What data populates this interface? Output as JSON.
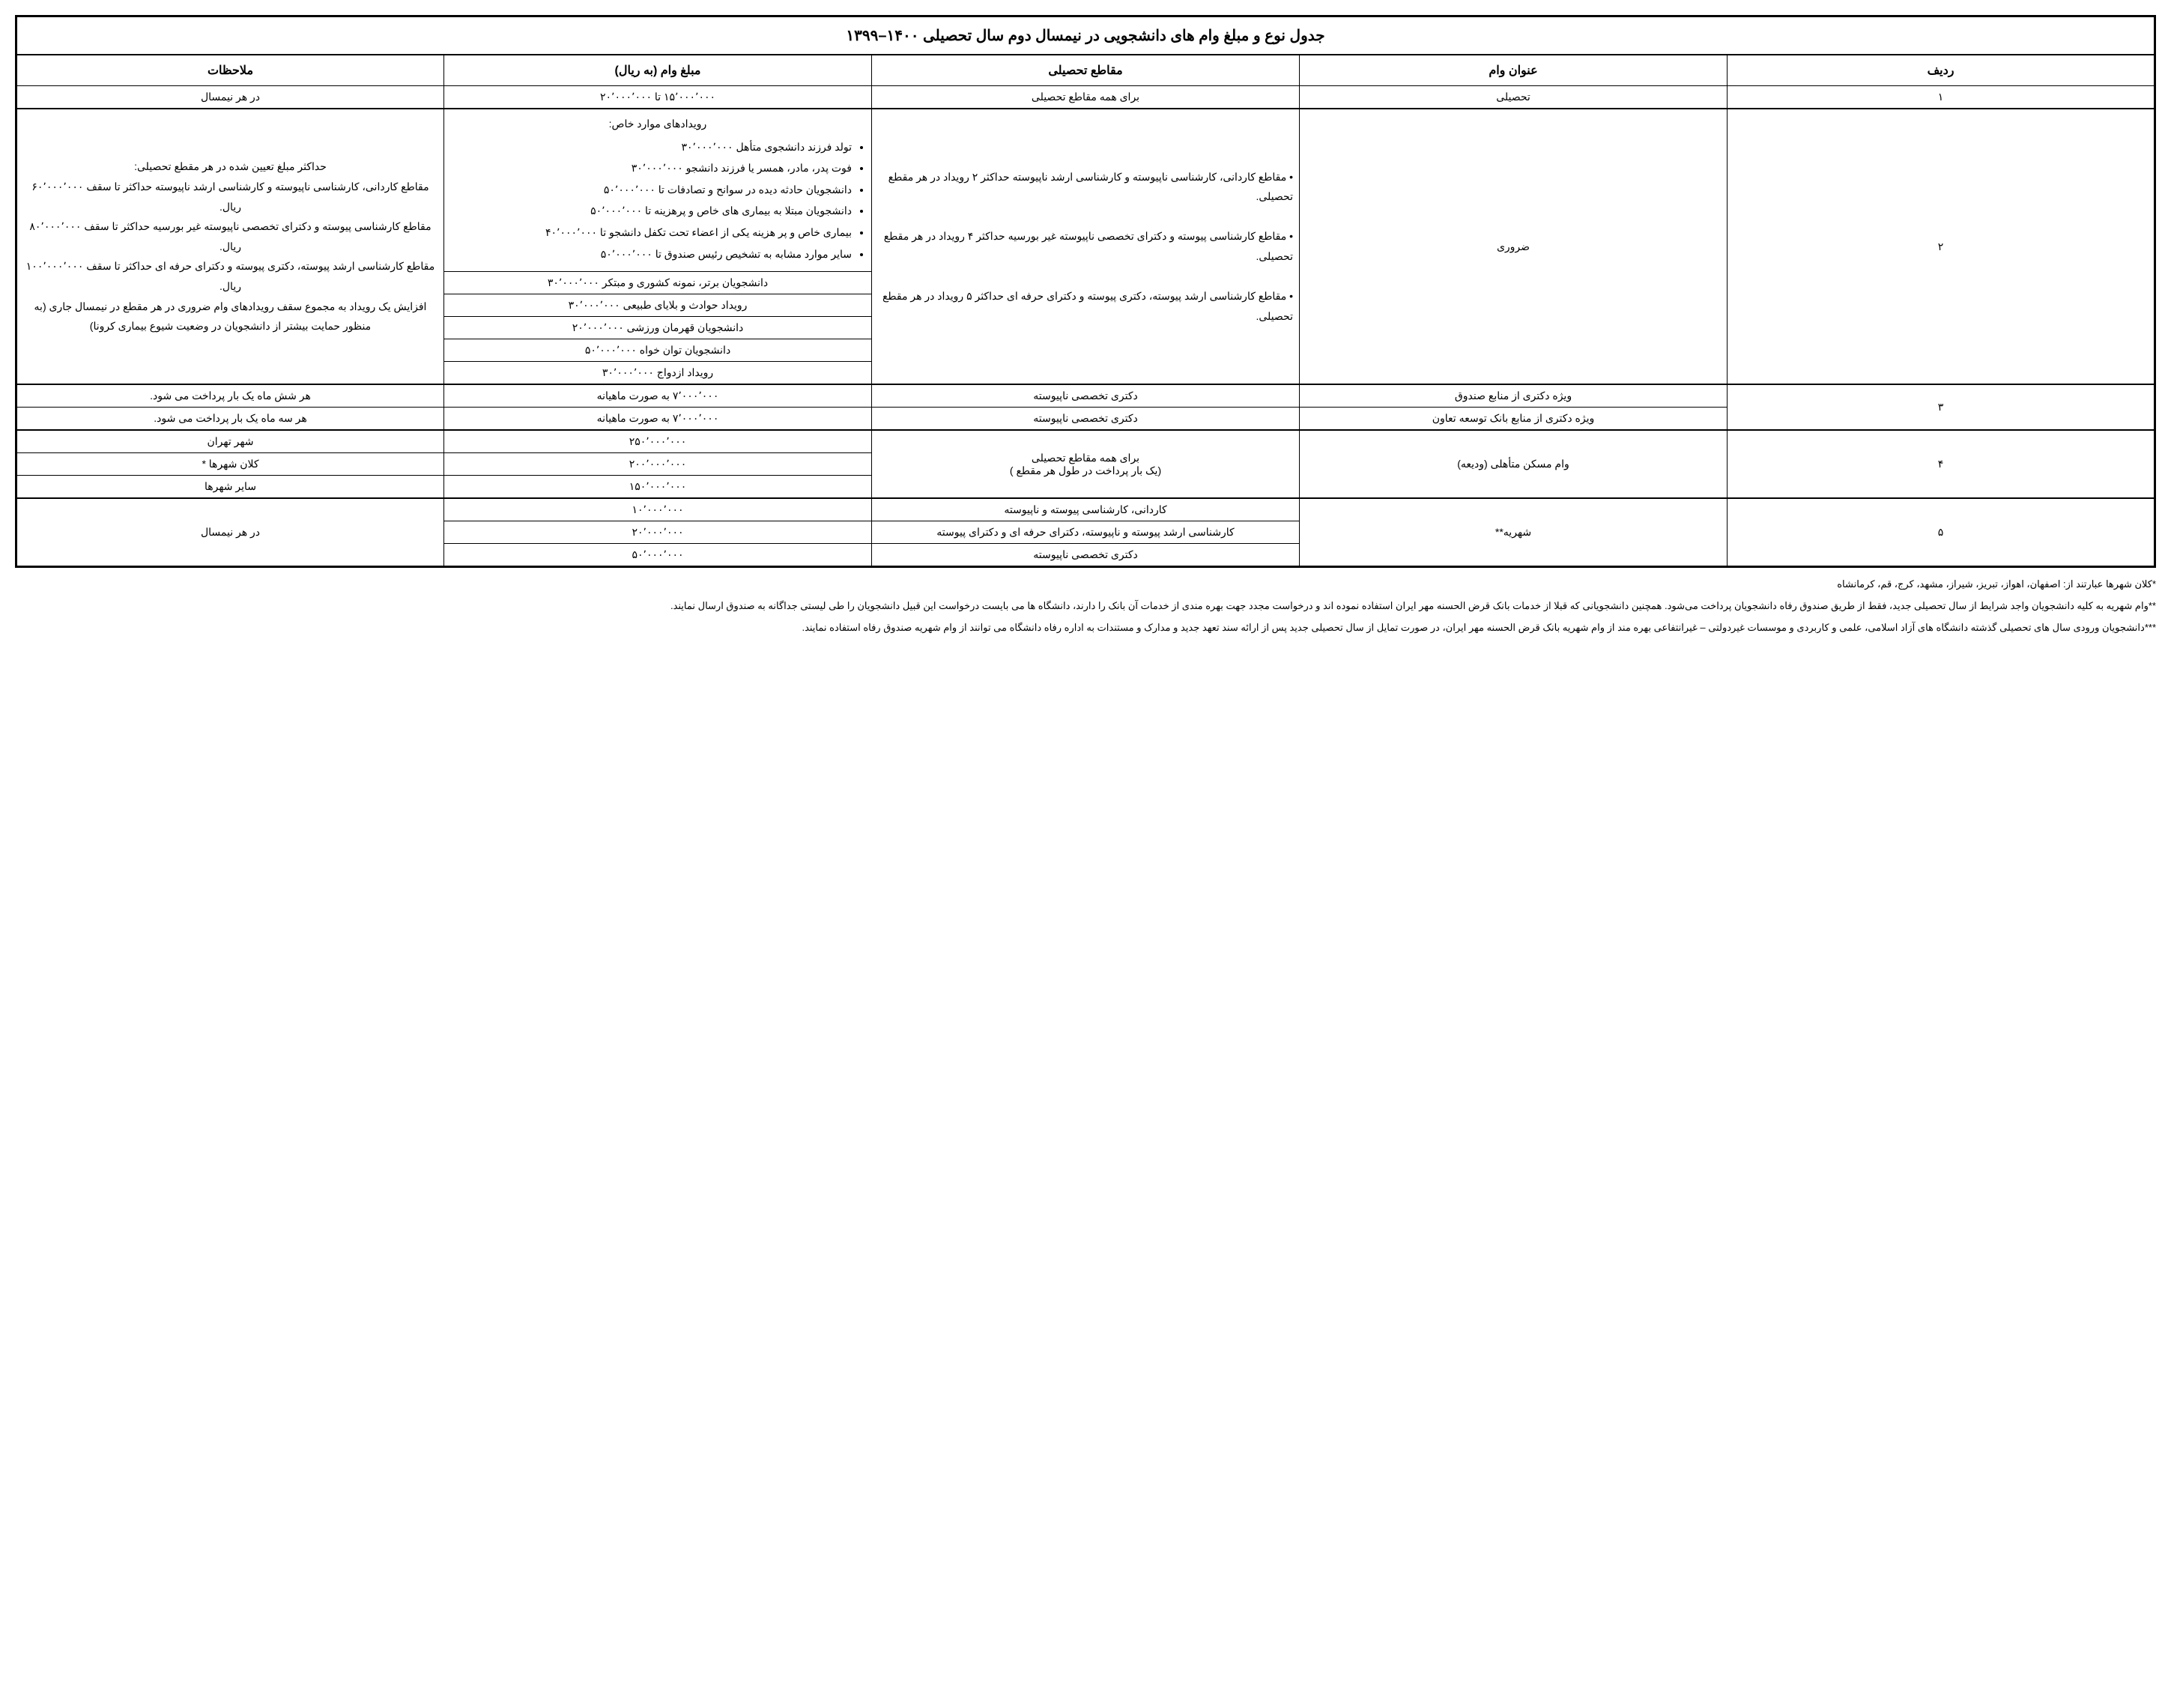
{
  "title": "جدول نوع و مبلغ وام های دانشجویی در نیمسال دوم سال تحصیلی ۱۴۰۰–۱۳۹۹",
  "headers": {
    "radif": "ردیف",
    "onvan": "عنوان وام",
    "maghta": "مقاطع تحصیلی",
    "mablagh": "مبلغ وام (به ریال)",
    "molahezat": "ملاحظات"
  },
  "row1": {
    "num": "۱",
    "onvan": "تحصیلی",
    "maghta": "برای همه مقاطع تحصیلی",
    "mablagh": "۱۵٬۰۰۰٬۰۰۰ تا ۲۰٬۰۰۰٬۰۰۰",
    "mol": "در هر نیمسال"
  },
  "row2": {
    "num": "۲",
    "onvan": "ضروری",
    "maghta1": "• مقاطع کاردانی، کارشناسی ناپیوسته و کارشناسی ارشد ناپیوسته حداکثر ۲ رویداد در هر مقطع تحصیلی.",
    "maghta2": "• مقاطع کارشناسی پیوسته و دکترای تخصصی ناپیوسته غیر بورسیه حداکثر ۴ رویداد در هر مقطع تحصیلی.",
    "maghta3": "• مقاطع کارشناسی ارشد پیوسته،  دکتری پیوسته و دکترای حرفه ای حداکثر ۵ رویداد در هر مقطع تحصیلی.",
    "mablagh_special_title": "رویدادهای موارد خاص:",
    "sp1": "تولد فرزند دانشجوی متأهل ۳۰٬۰۰۰٬۰۰۰",
    "sp2": "فوت پدر، مادر، همسر یا فرزند دانشجو ۳۰٬۰۰۰٬۰۰۰",
    "sp3": "دانشجویان حادثه دیده در سوانح و تصادفات تا ۵۰٬۰۰۰٬۰۰۰",
    "sp4": "دانشجویان مبتلا به بیماری های خاص و پرهزینه تا ۵۰٬۰۰۰٬۰۰۰",
    "sp5": "بیماری خاص و پر هزینه یکی از اعضاء تحت تکفل دانشجو تا ۴۰٬۰۰۰٬۰۰۰",
    "sp6": "سایر موارد مشابه به تشخیص رئیس صندوق تا ۵۰٬۰۰۰٬۰۰۰",
    "m2": "دانشجویان برتر، نمونه کشوری و مبتکر ۳۰٬۰۰۰٬۰۰۰",
    "m3": "رویداد حوادث و بلایای طبیعی ۳۰٬۰۰۰٬۰۰۰",
    "m4": "دانشجویان قهرمان ورزشی ۲۰٬۰۰۰٬۰۰۰",
    "m5": "دانشجویان توان خواه ۵۰٬۰۰۰٬۰۰۰",
    "m6": "رویداد ازدواج ۳۰٬۰۰۰٬۰۰۰",
    "mol1": "حداکثر مبلغ تعیین شده در هر مقطع تحصیلی:",
    "mol2": "مقاطع کاردانی، کارشناسی ناپیوسته و کارشناسی ارشد ناپیوسته حداکثر تا سقف ۶۰٬۰۰۰٬۰۰۰ ریال.",
    "mol3": "مقاطع کارشناسی پیوسته و دکترای تخصصی ناپیوسته غیر بورسیه حداکثر تا سقف ۸۰٬۰۰۰٬۰۰۰ ریال.",
    "mol4": "مقاطع کارشناسی ارشد پیوسته، دکتری پیوسته و دکترای حرفه ای حداکثر تا سقف ۱۰۰٬۰۰۰٬۰۰۰ ریال.",
    "mol5": "افزایش یک رویداد به مجموع سقف رویدادهای وام ضروری در هر مقطع در نیمسال جاری (به منظور حمایت بیشتر از دانشجویان در وضعیت شیوع بیماری کرونا)"
  },
  "row3": {
    "num": "۳",
    "onvan_a": "ویژه دکتری از منابع صندوق",
    "onvan_b": "ویژه دکتری از منابع بانک توسعه تعاون",
    "maghta": "دکتری تخصصی ناپیوسته",
    "mablagh": "۷٬۰۰۰٬۰۰۰ به صورت ماهیانه",
    "mol_a": "هر شش ماه یک بار پرداخت می شود.",
    "mol_b": "هر سه ماه یک بار پرداخت می شود."
  },
  "row4": {
    "num": "۴",
    "onvan": "وام مسکن متأهلی (ودیعه)",
    "maghta1": "برای همه مقاطع تحصیلی",
    "maghta2": "(یک بار پرداخت در طول هر مقطع )",
    "m1": "۲۵۰٬۰۰۰٬۰۰۰",
    "m2": "۲۰۰٬۰۰۰٬۰۰۰",
    "m3": "۱۵۰٬۰۰۰٬۰۰۰",
    "c1": "شهر تهران",
    "c2": "کلان شهرها *",
    "c3": "سایر شهرها"
  },
  "row5": {
    "num": "۵",
    "onvan": "شهریه**",
    "maghta1": "کاردانی، کارشناسی پیوسته و ناپیوسته",
    "maghta2": "کارشناسی ارشد پیوسته و ناپیوسته، دکترای حرفه ای و دکترای پیوسته",
    "maghta3": "دکتری تخصصی ناپیوسته",
    "m1": "۱۰٬۰۰۰٬۰۰۰",
    "m2": "۲۰٬۰۰۰٬۰۰۰",
    "m3": "۵۰٬۰۰۰٬۰۰۰",
    "mol": "در هر نیمسال"
  },
  "footnotes": {
    "f1": "*کلان شهرها عبارتند از: اصفهان، اهواز، تبریز، شیراز، مشهد، کرج، قم، کرمانشاه",
    "f2": "**وام شهریه به کلیه دانشجویان واجد شرایط از سال تحصیلی جدید، فقط از طریق صندوق رفاه دانشجویان پرداخت می‌شود. همچنین دانشجویانی که قبلا از خدمات بانک قرض الحسنه مهر ایران استفاده نموده اند و درخواست مجدد جهت بهره مندی از خدمات آن بانک را دارند، دانشگاه ها می بایست درخواست این قبیل دانشجویان را طی لیستی جداگانه به صندوق ارسال نمایند.",
    "f3": "***دانشجویان ورودی سال های تحصیلی گذشته دانشگاه های آزاد اسلامی، علمی و کاربردی و موسسات غیردولتی – غیرانتفاعی بهره مند از وام شهریه بانک قرض الحسنه مهر ایران، در صورت تمایل از سال تحصیلی جدید پس از ارائه سند تعهد جدید و  مدارک و مستندات به اداره رفاه دانشگاه می توانند از وام شهریه صندوق رفاه استفاده نمایند."
  }
}
